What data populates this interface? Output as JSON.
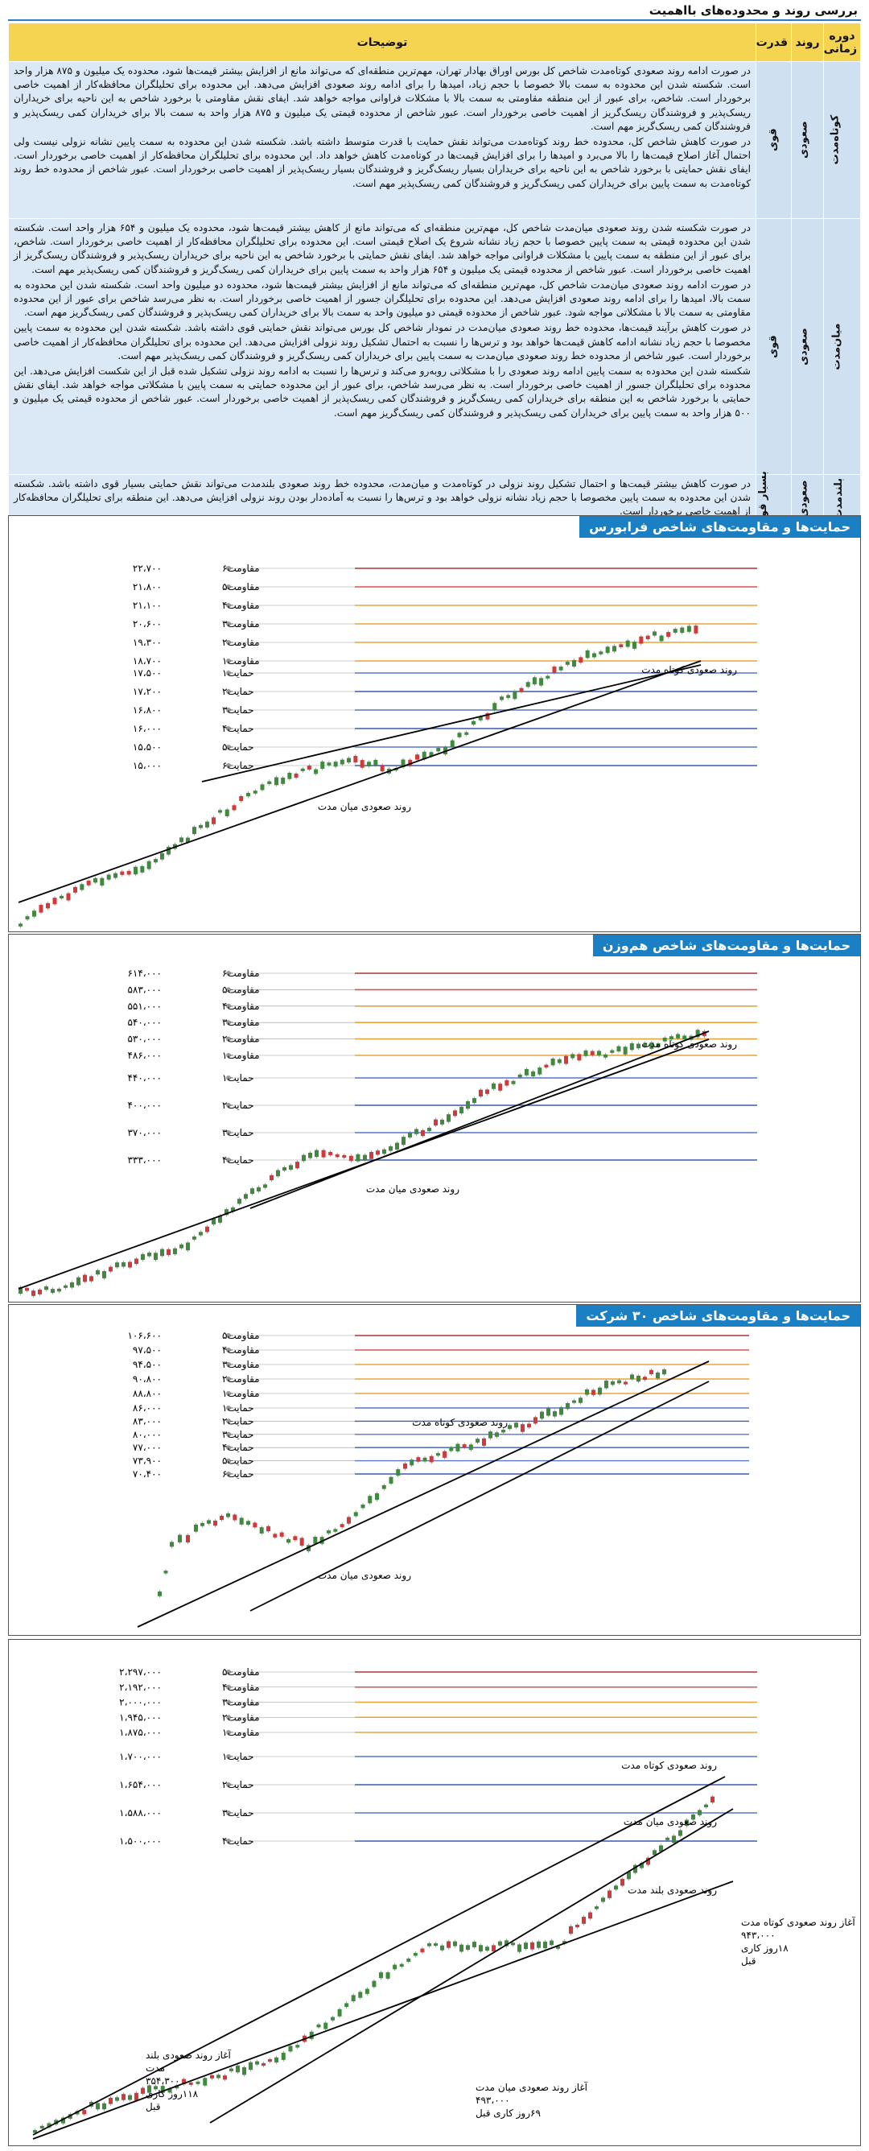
{
  "page_title": "بررسی روند و محدوده‌های بااهمیت",
  "table": {
    "headers": {
      "period": "دوره زمانی",
      "trend": "روند",
      "strength": "قدرت",
      "desc": "توضیحات"
    },
    "rows": [
      {
        "period": "کوتاه‌مدت",
        "trend": "صعودی",
        "strength": "قوی",
        "paragraphs": [
          "در صورت ادامه روند صعودی کوتاه‌مدت شاخص کل بورس اوراق بهادار تهران، مهم‌ترین منطقه‌ای که می‌تواند مانع از افزایش بیشتر قیمت‌ها شود، محدوده یک میلیون و ۸۷۵ هزار واحد است. شکسته شدن این محدوده به سمت بالا خصوصا با حجم زیاد، امیدها را برای ادامه روند صعودی افزایش می‌دهد. این محدوده برای تحلیلگران محافظه‌کار از اهمیت خاصی برخوردار است. شاخص، برای عبور از این منطقه مقاومتی به سمت بالا با مشکلات فراوانی مواجه خواهد شد. ایفای نقش مقاومتی با برخورد شاخص به این ناحیه برای خریداران ریسک‌پذیر و فروشندگان ریسک‌گریز از اهمیت خاصی برخوردار است. عبور شاخص از محدوده قیمتی یک میلیون و ۸۷۵ هزار واحد به سمت بالا برای خریداران کمی ریسک‌پذیر و فروشندگان کمی ریسک‌گریز مهم است.",
          "در صورت کاهش شاخص کل، محدوده خط روند کوتاه‌مدت می‌تواند نقش حمایت با قدرت متوسط داشته باشد. شکسته شدن این محدوده به سمت پایین نشانه نزولی نیست ولی احتمال آغاز اصلاح قیمت‌ها را بالا می‌برد و امیدها را برای افزایش قیمت‌ها در کوتاه‌مدت کاهش خواهد داد. این محدوده برای تحلیلگران محافظه‌کار از اهمیت خاصی برخوردار است. ایفای نقش حمایتی با برخورد شاخص به این ناحیه برای خریداران بسیار ریسک‌گریز و فروشندگان بسیار ریسک‌پذیر از اهمیت خاصی برخوردار است. عبور شاخص از محدوده خط روند کوتاه‌مدت به سمت پایین برای خریداران کمی ریسک‌گریز و فروشندگان کمی ریسک‌پذیر مهم است."
        ]
      },
      {
        "period": "میان‌مدت",
        "trend": "صعودی",
        "strength": "قوی",
        "paragraphs": [
          "در صورت شکسته شدن روند صعودی میان‌مدت شاخص کل، مهم‌ترین منطقه‌ای که می‌تواند مانع از کاهش بیشتر قیمت‌ها شود، محدوده یک میلیون و ۶۵۴ هزار واحد است. شکسته شدن این محدوده قیمتی به سمت پایین خصوصا با حجم زیاد نشانه شروع یک اصلاح قیمتی است. این محدوده برای تحلیلگران محافظه‌کار از اهمیت خاصی برخوردار است. شاخص، برای عبور از این منطقه به سمت پایین با مشکلات فراوانی مواجه خواهد شد. ایفای نقش حمایتی با برخورد شاخص به این ناحیه برای خریداران ریسک‌پذیر و فروشندگان ریسک‌گریز از اهمیت خاصی برخوردار است. عبور شاخص از محدوده قیمتی یک میلیون و ۶۵۴ هزار واحد به سمت پایین برای خریداران کمی ریسک‌گریز و فروشندگان کمی ریسک‌پذیر مهم است.",
          "در صورت ادامه روند صعودی میان‌مدت شاخص کل، مهم‌ترین منطقه‌ای که می‌تواند مانع از افزایش بیشتر قیمت‌ها شود، محدوده دو میلیون واحد است. شکسته شدن این محدوده به سمت بالا، امیدها را برای ادامه روند صعودی افزایش می‌دهد. این محدوده برای تحلیلگران جسور از اهمیت خاصی برخوردار است. به نظر می‌رسد شاخص برای عبور از این محدوده مقاومتی به سمت بالا با مشکلاتی مواجه شود. عبور شاخص از محدوده قیمتی دو میلیون واحد به سمت بالا برای خریداران کمی ریسک‌پذیر و فروشندگان کمی ریسک‌گریز مهم است.",
          "در صورت کاهش برآیند قیمت‌ها، محدوده خط روند صعودی میان‌مدت در نمودار شاخص کل بورس می‌تواند نقش حمایتی قوی داشته باشد. شکسته شدن این محدوده به سمت پایین مخصوصا با حجم زیاد نشانه ادامه کاهش قیمت‌ها خواهد بود و ترس‌ها را نسبت به احتمال تشکیل روند نزولی افزایش می‌دهد. این محدوده برای تحلیلگران محافظه‌کار از اهمیت خاصی برخوردار است. عبور شاخص از محدوده خط روند صعودی میان‌مدت به سمت پایین برای خریداران کمی ریسک‌گریز و فروشندگان کمی ریسک‌پذیر مهم است.",
          "شکسته شدن این محدوده به سمت پایین ادامه روند صعودی را با مشکلاتی روبه‌رو می‌کند و ترس‌ها را نسبت به ادامه روند نزولی تشکیل شده قبل از این شکست افزایش می‌دهد. این محدوده برای تحلیلگران جسور از اهمیت خاصی برخوردار است. به نظر می‌رسد شاخص، برای عبور از این محدوده حمایتی به سمت پایین با مشکلاتی مواجه خواهد شد. ایفای نقش حمایتی با برخورد شاخص به این منطقه برای خریداران کمی ریسک‌گریز و فروشندگان کمی ریسک‌پذیر از اهمیت خاصی برخوردار است. عبور شاخص از محدوده قیمتی یک میلیون و ۵۰۰ هزار واحد به سمت پایین برای خریداران کمی ریسک‌پذیر و فروشندگان کمی ریسک‌گریز مهم است."
        ]
      },
      {
        "period": "بلندمدت",
        "trend": "صعودی",
        "strength": "بسیار قوی",
        "paragraphs": [
          "در صورت کاهش بیشتر قیمت‌ها و احتمال تشکیل روند نزولی در کوتاه‌مدت و میان‌مدت، محدوده خط روند صعودی بلندمدت می‌تواند نقش حمایتی بسیار قوی داشته باشد. شکسته شدن این محدوده به سمت پایین مخصوصا با حجم زیاد نشانه نزولی خواهد بود و ترس‌ها را نسبت به آماده‌دار بودن روند نزولی افزایش می‌دهد. این منطقه برای تحلیلگران محافظه‌کار از اهمیت خاصی برخوردار است."
        ]
      }
    ]
  },
  "charts": [
    {
      "title": "حمایت‌ها و مقاومت‌های شاخص فرابورس",
      "resistance_labels": [
        "مقاومت۶",
        "مقاومت۵",
        "مقاومت۴",
        "مقاومت۳",
        "مقاومت۲",
        "مقاومت۱"
      ],
      "resistance_values": [
        "۲۲،۷۰۰",
        "۲۱،۸۰۰",
        "۲۱،۱۰۰",
        "۲۰،۶۰۰",
        "۱۹،۳۰۰",
        "۱۸،۷۰۰"
      ],
      "support_labels": [
        "حمایت۱",
        "حمایت۲",
        "حمایت۳",
        "حمایت۴",
        "حمایت۵",
        "حمایت۶"
      ],
      "support_values": [
        "۱۷،۵۰۰",
        "۱۷،۲۰۰",
        "۱۶،۸۰۰",
        "۱۶،۰۰۰",
        "۱۵،۵۰۰",
        "۱۵،۰۰۰"
      ],
      "trend_labels": [
        "روند صعودی کوتاه مدت",
        "روند صعودی میان مدت"
      ]
    },
    {
      "title": "حمایت‌ها و مقاومت‌های شاخص هم‌وزن",
      "resistance_labels": [
        "مقاومت۶",
        "مقاومت۵",
        "مقاومت۴",
        "مقاومت۳",
        "مقاومت۲",
        "مقاومت۱"
      ],
      "resistance_values": [
        "۶۱۴،۰۰۰",
        "۵۸۳،۰۰۰",
        "۵۵۱،۰۰۰",
        "۵۴۰،۰۰۰",
        "۵۳۰،۰۰۰",
        "۴۸۶،۰۰۰"
      ],
      "support_labels": [
        "حمایت۱",
        "حمایت۲",
        "حمایت۳",
        "حمایت۴"
      ],
      "support_values": [
        "۴۴۰،۰۰۰",
        "۴۰۰،۰۰۰",
        "۳۷۰،۰۰۰",
        "۳۳۳،۰۰۰"
      ],
      "trend_labels": [
        "روند صعودی کوتاه مدت",
        "روند صعودی میان مدت"
      ]
    },
    {
      "title": "حمایت‌ها و مقاومت‌های شاخص ۳۰ شرکت",
      "resistance_labels": [
        "مقاومت۵",
        "مقاومت۴",
        "مقاومت۳",
        "مقاومت۲",
        "مقاومت۱"
      ],
      "resistance_values": [
        "۱۰۶،۶۰۰",
        "۹۷،۵۰۰",
        "۹۴،۵۰۰",
        "۹۰،۸۰۰",
        "۸۸،۸۰۰"
      ],
      "support_labels": [
        "حمایت۱",
        "حمایت۲",
        "حمایت۳",
        "حمایت۴",
        "حمایت۵",
        "حمایت۶"
      ],
      "support_values": [
        "۸۶،۰۰۰",
        "۸۳،۰۰۰",
        "۸۰،۰۰۰",
        "۷۷،۰۰۰",
        "۷۳،۹۰۰",
        "۷۰،۴۰۰"
      ],
      "trend_labels": [
        "روند صعودی کوتاه مدت",
        "روند صعودی میان مدت"
      ]
    },
    {
      "title": "",
      "resistance_labels": [
        "مقاومت۵",
        "مقاومت۴",
        "مقاومت۳",
        "مقاومت۲",
        "مقاومت۱"
      ],
      "resistance_values": [
        "۲،۲۹۷،۰۰۰",
        "۲،۱۹۲،۰۰۰",
        "۲،۰۰۰،۰۰۰",
        "۱،۹۴۵،۰۰۰",
        "۱،۸۷۵،۰۰۰"
      ],
      "support_labels": [
        "حمایت۱",
        "حمایت۲",
        "حمایت۳",
        "حمایت۴"
      ],
      "support_values": [
        "۱،۷۰۰،۰۰۰",
        "۱،۶۵۴،۰۰۰",
        "۱،۵۸۸،۰۰۰",
        "۱،۵۰۰،۰۰۰"
      ],
      "trend_labels": [
        "روند صعودی کوتاه مدت",
        "روند صعودی میان مدت",
        "روند صعودی بلند مدت"
      ],
      "annotations": [
        {
          "lines": [
            "آغاز روند صعودی بلند",
            "مدت",
            "۳۵۴،۳۰۰",
            "۱۱۸روز کاری",
            "قبل"
          ]
        },
        {
          "lines": [
            "آغاز روند صعودی میان مدت",
            "۴۹۳،۰۰۰",
            "۶۹روز کاری قبل"
          ]
        },
        {
          "lines": [
            "آغاز روند صعودی کوتاه مدت",
            "۹۴۳،۰۰۰",
            "۱۸روز کاری",
            "قبل"
          ]
        }
      ]
    }
  ],
  "chart_data": [
    {
      "type": "candlestick",
      "title": "حمایت‌ها و مقاومت‌های شاخص فرابورس",
      "resistance": [
        22700,
        21800,
        21100,
        20600,
        19300,
        18700
      ],
      "support": [
        17500,
        17200,
        16800,
        16000,
        15500,
        15000
      ]
    },
    {
      "type": "candlestick",
      "title": "حمایت‌ها و مقاومت‌های شاخص هم‌وزن",
      "resistance": [
        614000,
        583000,
        551000,
        540000,
        530000,
        486000
      ],
      "support": [
        440000,
        400000,
        370000,
        333000
      ]
    },
    {
      "type": "candlestick",
      "title": "حمایت‌ها و مقاومت‌های شاخص ۳۰ شرکت",
      "resistance": [
        106600,
        97500,
        94500,
        90800,
        88800
      ],
      "support": [
        86000,
        83000,
        80000,
        77000,
        73900,
        70400
      ]
    },
    {
      "type": "candlestick",
      "title": "",
      "resistance": [
        2297000,
        2192000,
        2000000,
        1945000,
        1875000
      ],
      "support": [
        1700000,
        1654000,
        1588000,
        1500000
      ],
      "trend_starts": [
        354300,
        493000,
        943000
      ]
    }
  ]
}
